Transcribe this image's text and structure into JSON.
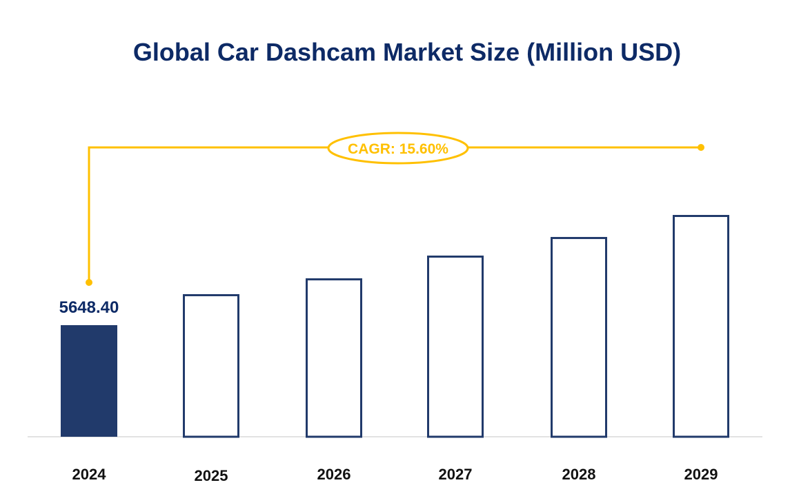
{
  "chart_data": {
    "type": "bar",
    "title": "Global Car Dashcam Market Size (Million USD)",
    "xlabel": "",
    "ylabel": "",
    "categories": [
      "2024",
      "2025",
      "2026",
      "2027",
      "2028",
      "2029"
    ],
    "values": [
      5648.4,
      7218,
      8020,
      9170,
      10112,
      11227
    ],
    "value_labels": [
      "5648.40",
      "",
      "",
      "",
      "",
      ""
    ],
    "ylim": [
      0,
      12000
    ],
    "grid": false,
    "annotation": "CAGR: 15.60%",
    "colors": {
      "title": "#0d2a66",
      "bar": "#213a6b",
      "bar_fill_first": "#213a6b",
      "bar_fill_others": "#ffffff",
      "cagr": "#ffc000",
      "axis": "#d9d9d9",
      "tick_label": "#111111"
    }
  }
}
